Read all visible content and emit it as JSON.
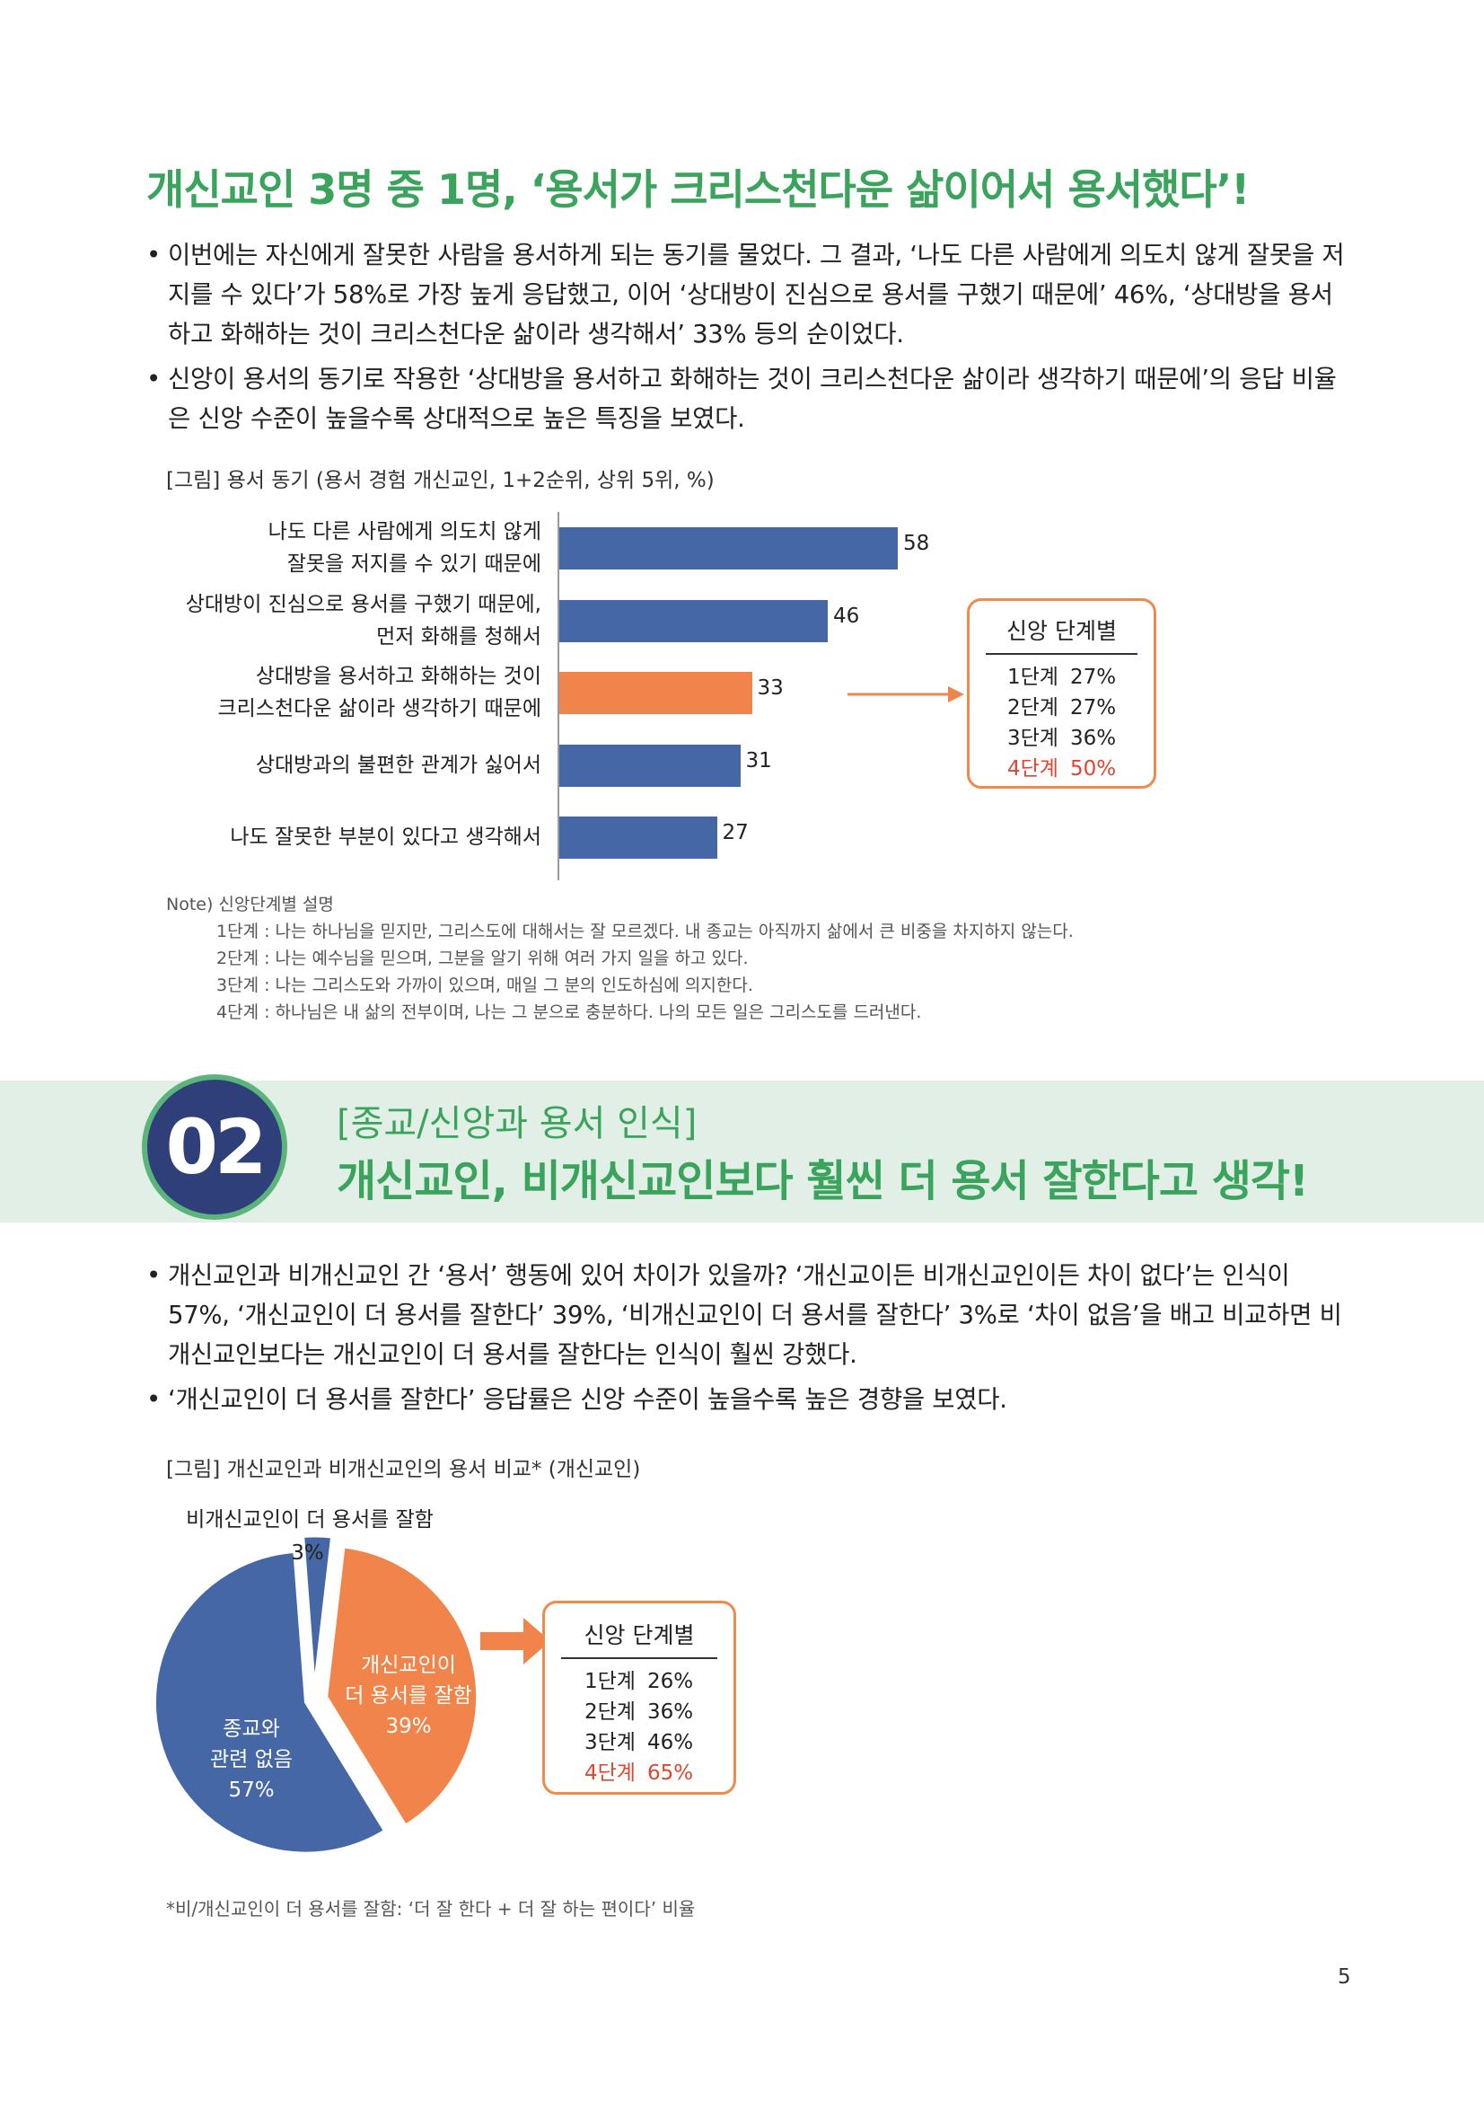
{
  "section1": {
    "title": "개신교인 3명 중 1명, ‘용서가 크리스천다운 삶이어서 용서했다’!",
    "bullets": [
      "이번에는 자신에게 잘못한 사람을 용서하게 되는 동기를 물었다. 그 결과, ‘나도 다른 사람에게 의도치 않게 잘못을 저지를 수 있다’가 58%로 가장 높게 응답했고, 이어 ‘상대방이 진심으로 용서를 구했기 때문에’ 46%, ‘상대방을 용서하고 화해하는 것이 크리스천다운 삶이라 생각해서’ 33% 등의 순이었다.",
      "신앙이 용서의 동기로 작용한 ‘상대방을 용서하고 화해하는 것이 크리스천다운 삶이라 생각하기 때문에’의 응답 비율은 신앙 수준이 높을수록 상대적으로 높은 특징을 보였다."
    ],
    "figure_caption": "[그림] 용서 동기 (용서 경험 개신교인, 1+2순위, 상위 5위, %)",
    "stage_box": {
      "title": "신앙 단계별",
      "rows": [
        {
          "label": "1단계",
          "value": "27%"
        },
        {
          "label": "2단계",
          "value": "27%"
        },
        {
          "label": "3단계",
          "value": "36%"
        },
        {
          "label": "4단계",
          "value": "50%"
        }
      ]
    },
    "note": {
      "title": "Note) 신앙단계별 설명",
      "lines": [
        "1단계 : 나는 하나님을 믿지만, 그리스도에 대해서는 잘 모르겠다. 내 종교는 아직까지 삶에서 큰 비중을 차지하지 않는다.",
        "2단계 : 나는 예수님을 믿으며, 그분을 알기 위해 여러 가지 일을 하고 있다.",
        "3단계 : 나는 그리스도와 가까이 있으며, 매일 그 분의 인도하심에 의지한다.",
        "4단계 : 하나님은 내 삶의 전부이며, 나는 그 분으로 충분하다. 나의 모든 일은 그리스도를 드러낸다."
      ]
    }
  },
  "section2": {
    "number": "02",
    "subtitle": "[종교/신앙과 용서 인식]",
    "title": "개신교인, 비개신교인보다 훨씬 더 용서 잘한다고 생각!",
    "bullets": [
      "개신교인과 비개신교인 간 ‘용서’ 행동에 있어 차이가 있을까? ‘개신교이든 비개신교인이든 차이 없다’는 인식이 57%, ‘개신교인이 더 용서를 잘한다’ 39%, ‘비개신교인이 더 용서를 잘한다’ 3%로 ‘차이 없음’을 배고 비교하면 비개신교인보다는 개신교인이 더 용서를 잘한다는 인식이 훨씬 강했다.",
      "‘개신교인이 더 용서를 잘한다’ 응답률은 신앙 수준이 높을수록 높은 경향을 보였다."
    ],
    "figure_caption": "[그림] 개신교인과 비개신교인의 용서 비교* (개신교인)",
    "stage_box": {
      "title": "신앙 단계별",
      "rows": [
        {
          "label": "1단계",
          "value": "26%"
        },
        {
          "label": "2단계",
          "value": "36%"
        },
        {
          "label": "3단계",
          "value": "46%"
        },
        {
          "label": "4단계",
          "value": "65%"
        }
      ]
    },
    "footnote": "*비/개신교인이 더 용서를 잘함: ‘더 잘 한다 + 더 잘 하는 편이다’ 비율"
  },
  "page_number": "5",
  "colors": {
    "green": "#3aa35c",
    "blue": "#4567a6",
    "orange": "#f0844a",
    "red": "#e0452f",
    "navy": "#2e3f7a"
  },
  "chart_data": [
    {
      "type": "bar",
      "orientation": "horizontal",
      "categories": [
        [
          "나도 다른 사람에게 의도치 않게",
          "잘못을 저지를 수 있기 때문에"
        ],
        [
          "상대방이 진심으로 용서를 구했기 때문에,",
          "먼저 화해를 청해서"
        ],
        [
          "상대방을 용서하고 화해하는 것이",
          "크리스천다운 삶이라 생각하기 때문에"
        ],
        [
          "상대방과의 불편한 관계가 싫어서"
        ],
        [
          "나도 잘못한 부분이 있다고 생각해서"
        ]
      ],
      "values": [
        58,
        46,
        33,
        31,
        27
      ],
      "highlight_index": 2,
      "xlim": [
        0,
        100
      ]
    },
    {
      "type": "pie",
      "slices": [
        {
          "label": [
            "비개신교인이 더 용서를 잘함"
          ],
          "value": 3,
          "value_label": "3%"
        },
        {
          "label": [
            "개신교인이",
            "더 용서를 잘함"
          ],
          "value": 39,
          "value_label": "39%"
        },
        {
          "label": [
            "종교와",
            "관련 없음"
          ],
          "value": 57,
          "value_label": "57%"
        }
      ]
    }
  ]
}
